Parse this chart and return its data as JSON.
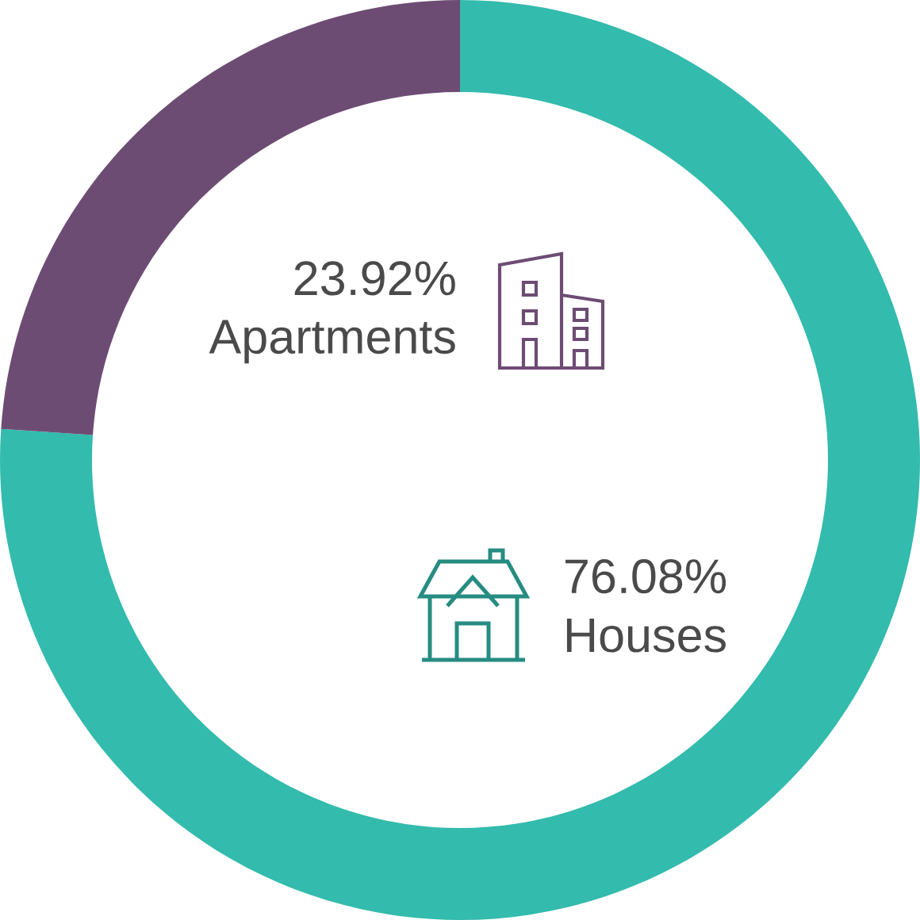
{
  "chart_data": {
    "type": "donut",
    "categories": [
      "Houses",
      "Apartments"
    ],
    "values": [
      76.08,
      23.92
    ],
    "colors": [
      "#33bbad",
      "#6d4c74"
    ],
    "value_labels": [
      "76.08%",
      "23.92%"
    ]
  }
}
